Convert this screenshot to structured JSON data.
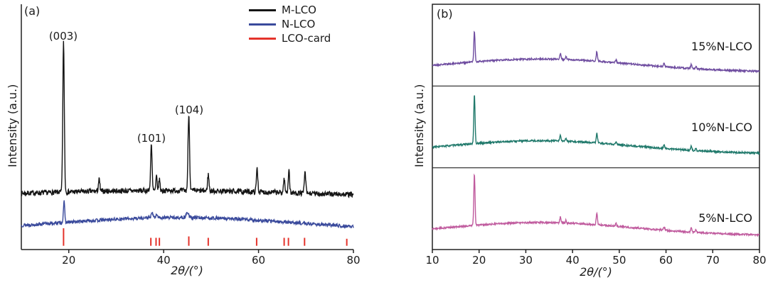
{
  "chart_data": [
    {
      "panel_label": "(a)",
      "type": "line",
      "xlabel": "2θ/(°)",
      "ylabel": "Intensity (a.u.)",
      "xlim": [
        10,
        80
      ],
      "xticks": [
        20,
        40,
        60,
        80
      ],
      "grid": false,
      "legend_position": "top-right",
      "annotations": [
        {
          "label": "(003)",
          "x": 18.9
        },
        {
          "label": "(101)",
          "x": 37.4
        },
        {
          "label": "(104)",
          "x": 45.3
        }
      ],
      "series": [
        {
          "name": "M-LCO",
          "color": "#151515",
          "style": "line",
          "baseline": 0.21,
          "noise": 0.011,
          "seed": 7,
          "hump": {
            "amp": 0.03,
            "center": 40,
            "width": 30
          },
          "peaks": [
            [
              18.9,
              0.64,
              0.16
            ],
            [
              26.4,
              0.05,
              0.15
            ],
            [
              37.4,
              0.2,
              0.15
            ],
            [
              38.5,
              0.06,
              0.13
            ],
            [
              39.1,
              0.05,
              0.13
            ],
            [
              45.3,
              0.33,
              0.16
            ],
            [
              49.4,
              0.07,
              0.15
            ],
            [
              59.7,
              0.1,
              0.15
            ],
            [
              65.4,
              0.06,
              0.14
            ],
            [
              66.4,
              0.1,
              0.14
            ],
            [
              69.8,
              0.09,
              0.15
            ]
          ]
        },
        {
          "name": "N-LCO",
          "color": "#3a4a9c",
          "style": "line",
          "baseline": 0.07,
          "noise": 0.007,
          "seed": 13,
          "hump": {
            "amp": 0.055,
            "center": 43,
            "width": 24
          },
          "peaks": [
            [
              19.0,
              0.09,
              0.14
            ],
            [
              37.6,
              0.02,
              0.2
            ],
            [
              38.6,
              0.015,
              0.15
            ],
            [
              45.0,
              0.022,
              0.25
            ]
          ]
        },
        {
          "name": "LCO-card",
          "color": "#e4332b",
          "style": "sticks",
          "base": 0.004,
          "sticks": [
            [
              18.9,
              0.075
            ],
            [
              37.3,
              0.034
            ],
            [
              38.4,
              0.034
            ],
            [
              39.1,
              0.034
            ],
            [
              45.3,
              0.04
            ],
            [
              49.4,
              0.034
            ],
            [
              59.6,
              0.034
            ],
            [
              65.4,
              0.034
            ],
            [
              66.3,
              0.034
            ],
            [
              69.7,
              0.034
            ],
            [
              78.6,
              0.03
            ]
          ]
        }
      ]
    },
    {
      "panel_label": "(b)",
      "type": "line",
      "xlabel": "2θ/(°)",
      "ylabel": "Intensity (a.u.)",
      "xlim": [
        10,
        80
      ],
      "xticks": [
        10,
        20,
        30,
        40,
        50,
        60,
        70,
        80
      ],
      "grid": false,
      "stacked_rows": 3,
      "series": [
        {
          "name": "15%N-LCO",
          "color": "#6f4da0",
          "style": "line",
          "baseline": 0.14,
          "noise": 0.012,
          "seed": 21,
          "hump": {
            "amp": 0.19,
            "center": 33,
            "width": 20
          },
          "peaks": [
            [
              19.0,
              0.45,
              0.13
            ],
            [
              37.4,
              0.085,
              0.13
            ],
            [
              38.6,
              0.04,
              0.12
            ],
            [
              45.2,
              0.14,
              0.14
            ],
            [
              49.3,
              0.045,
              0.13
            ],
            [
              59.6,
              0.05,
              0.14
            ],
            [
              65.4,
              0.06,
              0.13
            ],
            [
              66.4,
              0.035,
              0.12
            ]
          ]
        },
        {
          "name": "10%N-LCO",
          "color": "#20796b",
          "style": "line",
          "baseline": 0.14,
          "noise": 0.012,
          "seed": 33,
          "hump": {
            "amp": 0.19,
            "center": 33,
            "width": 20
          },
          "peaks": [
            [
              19.0,
              0.72,
              0.13
            ],
            [
              37.4,
              0.085,
              0.13
            ],
            [
              38.6,
              0.04,
              0.12
            ],
            [
              45.2,
              0.14,
              0.14
            ],
            [
              49.3,
              0.045,
              0.13
            ],
            [
              59.6,
              0.05,
              0.14
            ],
            [
              65.4,
              0.06,
              0.13
            ],
            [
              66.4,
              0.035,
              0.12
            ]
          ]
        },
        {
          "name": "5%N-LCO",
          "color": "#c05b9e",
          "style": "line",
          "baseline": 0.14,
          "noise": 0.012,
          "seed": 44,
          "hump": {
            "amp": 0.19,
            "center": 33,
            "width": 20
          },
          "peaks": [
            [
              19.0,
              0.75,
              0.13
            ],
            [
              37.4,
              0.085,
              0.13
            ],
            [
              38.6,
              0.04,
              0.12
            ],
            [
              45.2,
              0.16,
              0.14
            ],
            [
              49.3,
              0.045,
              0.13
            ],
            [
              59.6,
              0.05,
              0.14
            ],
            [
              65.4,
              0.06,
              0.13
            ],
            [
              66.4,
              0.035,
              0.12
            ]
          ]
        }
      ]
    }
  ]
}
